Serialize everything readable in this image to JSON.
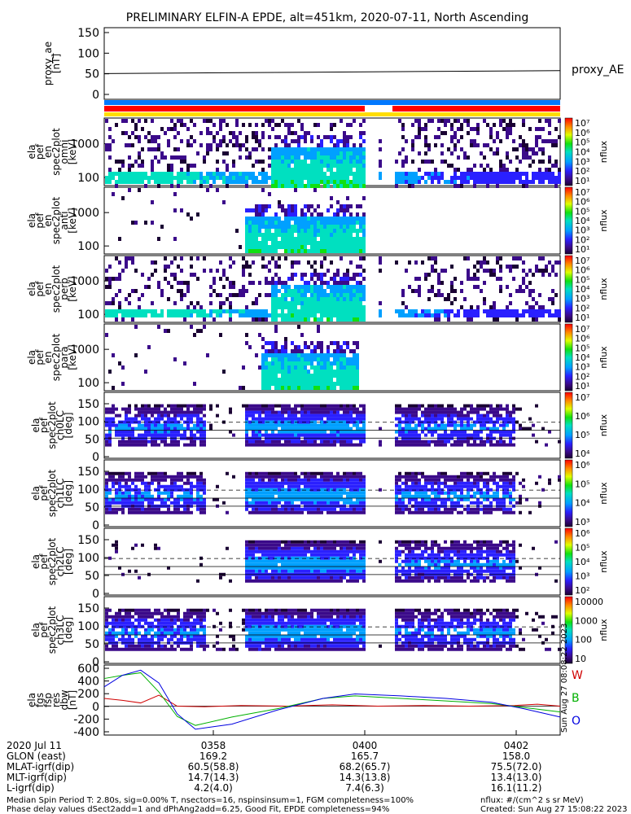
{
  "title": "PRELIMINARY ELFIN-A EPDE, alt=451km, 2020-07-11, North Ascending",
  "chart_data": [
    {
      "type": "line",
      "panel": "proxy_ae",
      "ylabel": [
        "proxy_ae",
        "[nT]"
      ],
      "yticks": [
        "150",
        "100",
        "50",
        "0"
      ],
      "ylim": [
        -15,
        160
      ],
      "series": [
        {
          "name": "proxy_AE",
          "x": [
            0,
            1
          ],
          "y": [
            48,
            55
          ]
        }
      ]
    },
    {
      "type": "heatmap",
      "panel": "spec-omni",
      "ylabel": [
        "ela",
        "pef",
        "en",
        "spec2plot",
        "omni",
        "[keV]"
      ],
      "yticks": [
        "1000",
        "100"
      ],
      "colorbar": {
        "label": "nflux",
        "ticks": [
          "10⁷",
          "10⁶",
          "10⁵",
          "10⁴",
          "10³",
          "10²",
          "10¹"
        ]
      }
    },
    {
      "type": "heatmap",
      "panel": "spec-anti",
      "ylabel": [
        "ela",
        "pef",
        "en",
        "spec2plot",
        "anti",
        "[keV]"
      ],
      "yticks": [
        "1000",
        "100"
      ],
      "colorbar": {
        "label": "nflux",
        "ticks": [
          "10⁷",
          "10⁶",
          "10⁵",
          "10⁴",
          "10³",
          "10²",
          "10¹"
        ]
      }
    },
    {
      "type": "heatmap",
      "panel": "spec-perp",
      "ylabel": [
        "ela",
        "pef",
        "en",
        "spec2plot",
        "perp",
        "[keV]"
      ],
      "yticks": [
        "1000",
        "100"
      ],
      "colorbar": {
        "label": "nflux",
        "ticks": [
          "10⁷",
          "10⁶",
          "10⁵",
          "10⁴",
          "10³",
          "10²",
          "10¹"
        ]
      }
    },
    {
      "type": "heatmap",
      "panel": "spec-para",
      "ylabel": [
        "ela",
        "pef",
        "en",
        "spec2plot",
        "para",
        "[keV]"
      ],
      "yticks": [
        "1000",
        "100"
      ],
      "colorbar": {
        "label": "nflux",
        "ticks": [
          "10⁷",
          "10⁶",
          "10⁵",
          "10⁴",
          "10³",
          "10²",
          "10¹"
        ]
      }
    },
    {
      "type": "heatmap",
      "panel": "pa-ch0",
      "ylabel": [
        "ela",
        "pef",
        "spec2plot",
        "ch0LC",
        "[deg]"
      ],
      "yticks": [
        "150",
        "100",
        "50",
        "0"
      ],
      "colorbar": {
        "label": "nflux",
        "ticks": [
          "10⁷",
          "10⁶",
          "10⁵",
          "10⁴"
        ]
      }
    },
    {
      "type": "heatmap",
      "panel": "pa-ch1",
      "ylabel": [
        "ela",
        "pef",
        "spec2plot",
        "ch1LC",
        "[deg]"
      ],
      "yticks": [
        "150",
        "100",
        "50",
        "0"
      ],
      "colorbar": {
        "label": "nflux",
        "ticks": [
          "10⁶",
          "10⁵",
          "10⁴",
          "10³"
        ]
      }
    },
    {
      "type": "heatmap",
      "panel": "pa-ch2",
      "ylabel": [
        "ela",
        "pef",
        "spec2plot",
        "ch2LC",
        "[deg]"
      ],
      "yticks": [
        "150",
        "100",
        "50",
        "0"
      ],
      "colorbar": {
        "label": "nflux",
        "ticks": [
          "10⁶",
          "10⁵",
          "10⁴",
          "10³",
          "10²"
        ]
      }
    },
    {
      "type": "heatmap",
      "panel": "pa-ch3",
      "ylabel": [
        "ela",
        "pef",
        "spec2plot",
        "ch3LC",
        "[deg]"
      ],
      "yticks": [
        "150",
        "100",
        "50",
        "0"
      ],
      "colorbar": {
        "label": "nflux",
        "ticks": [
          "10000",
          "1000",
          "100",
          "10"
        ]
      }
    },
    {
      "type": "line",
      "panel": "dbw",
      "ylabel": [
        "ela",
        "fgs",
        "fsp",
        "res",
        "dbw",
        "[nT]"
      ],
      "yticks": [
        "600",
        "400",
        "200",
        "0",
        "-200",
        "-400"
      ],
      "ylim": [
        -450,
        640
      ],
      "series": [
        {
          "name": "W",
          "color": "#d00000",
          "x": [
            0,
            0.04,
            0.08,
            0.12,
            0.16,
            0.22,
            0.3,
            0.4,
            0.5,
            0.6,
            0.7,
            0.8,
            0.9,
            0.95,
            1.0
          ],
          "y": [
            120,
            90,
            50,
            170,
            0,
            -10,
            10,
            0,
            20,
            0,
            10,
            0,
            10,
            30,
            0
          ]
        },
        {
          "name": "B",
          "color": "#00b000",
          "x": [
            0,
            0.04,
            0.08,
            0.12,
            0.16,
            0.2,
            0.28,
            0.38,
            0.48,
            0.55,
            0.65,
            0.75,
            0.85,
            0.92,
            1.0
          ],
          "y": [
            430,
            480,
            520,
            220,
            -160,
            -300,
            -170,
            -40,
            120,
            160,
            120,
            80,
            40,
            -20,
            -90
          ]
        },
        {
          "name": "O",
          "color": "#0000e0",
          "x": [
            0,
            0.04,
            0.08,
            0.12,
            0.16,
            0.2,
            0.28,
            0.38,
            0.48,
            0.55,
            0.65,
            0.75,
            0.85,
            0.92,
            1.0
          ],
          "y": [
            300,
            480,
            560,
            360,
            -120,
            -360,
            -280,
            -60,
            120,
            190,
            160,
            120,
            60,
            -40,
            -170
          ]
        }
      ]
    }
  ],
  "legend_labels": {
    "proxy": "proxy_AE",
    "w": "W",
    "b": "B",
    "o": "O"
  },
  "xaxis": {
    "row_labels": [
      "2020 Jul 11",
      "GLON (east)",
      "MLAT-igrf(dip)",
      "MLT-igrf(dip)",
      "L-igrf(dip)"
    ],
    "columns": [
      {
        "time": "0358",
        "glon": "169.2",
        "mlat": "60.5(58.8)",
        "mlt": "14.7(14.3)",
        "l": "4.2(4.0)"
      },
      {
        "time": "0400",
        "glon": "165.7",
        "mlat": "68.2(65.7)",
        "mlt": "14.3(13.8)",
        "l": "7.4(6.3)"
      },
      {
        "time": "0402",
        "glon": "158.0",
        "mlat": "75.5(72.0)",
        "mlt": "13.4(13.0)",
        "l": "16.1(11.2)"
      }
    ]
  },
  "footer": {
    "line1": "Median Spin Period T: 2.80s, sig=0.00% T, nsectors=16, nspinsinsum=1, FGM completeness=100%",
    "line2": "Phase delay values dSect2add=1 and dPhAng2add=6.25, Good Fit, EPDE completeness=94%",
    "units": "nflux: #/(cm^2 s sr MeV)",
    "created": "Created: Sun Aug 27 15:08:22 2023",
    "side_stamp": "Sun Aug 27 08:08:22 2023"
  },
  "colors": {
    "red_bar": "#ff0000",
    "blue_bar": "#0078ff",
    "yellow_bar": "#ffdd00"
  }
}
